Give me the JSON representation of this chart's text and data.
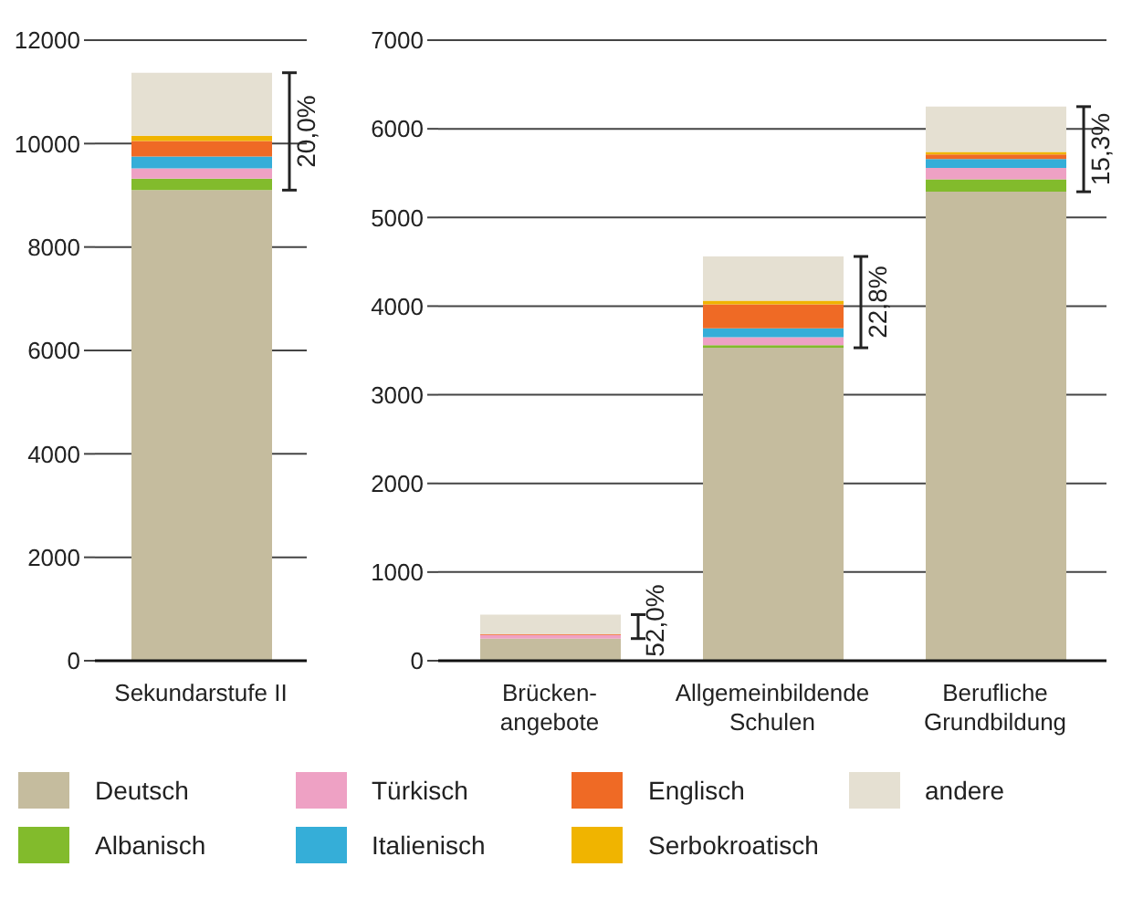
{
  "chart_data": [
    {
      "type": "bar",
      "stacked": true,
      "categories": [
        "Sekundarstufe II"
      ],
      "ylim": [
        0,
        12000
      ],
      "yticks": [
        0,
        2000,
        4000,
        6000,
        8000,
        10000,
        12000
      ],
      "grid": "y",
      "legend": "bottom",
      "series": [
        {
          "name": "Deutsch",
          "color": "#c5bc9e",
          "values": [
            9100
          ]
        },
        {
          "name": "Albanisch",
          "color": "#82bb2c",
          "values": [
            220
          ]
        },
        {
          "name": "Türkisch",
          "color": "#eea1c4",
          "values": [
            200
          ]
        },
        {
          "name": "Italienisch",
          "color": "#35aed8",
          "values": [
            230
          ]
        },
        {
          "name": "Englisch",
          "color": "#ef6a25",
          "values": [
            300
          ]
        },
        {
          "name": "Serbokroatisch",
          "color": "#f0b400",
          "values": [
            100
          ]
        },
        {
          "name": "andere",
          "color": "#e5e0d2",
          "values": [
            1220
          ]
        }
      ],
      "annotations": [
        "20,0%"
      ]
    },
    {
      "type": "bar",
      "stacked": true,
      "categories": [
        "Brücken-angebote",
        "Allgemeinbildende Schulen",
        "Berufliche Grundbildung"
      ],
      "ylim": [
        0,
        7000
      ],
      "yticks": [
        0,
        1000,
        2000,
        3000,
        4000,
        5000,
        6000,
        7000
      ],
      "grid": "y",
      "legend": "bottom",
      "series": [
        {
          "name": "Deutsch",
          "color": "#c5bc9e",
          "values": [
            250,
            3530,
            5290
          ]
        },
        {
          "name": "Albanisch",
          "color": "#82bb2c",
          "values": [
            0,
            30,
            140
          ]
        },
        {
          "name": "Türkisch",
          "color": "#eea1c4",
          "values": [
            40,
            90,
            130
          ]
        },
        {
          "name": "Italienisch",
          "color": "#35aed8",
          "values": [
            0,
            100,
            100
          ]
        },
        {
          "name": "Englisch",
          "color": "#ef6a25",
          "values": [
            10,
            270,
            50
          ]
        },
        {
          "name": "Serbokroatisch",
          "color": "#f0b400",
          "values": [
            0,
            40,
            30
          ]
        },
        {
          "name": "andere",
          "color": "#e5e0d2",
          "values": [
            220,
            500,
            510
          ]
        }
      ],
      "annotations": [
        "52,0%",
        "22,8%",
        "15,3%"
      ]
    }
  ]
}
